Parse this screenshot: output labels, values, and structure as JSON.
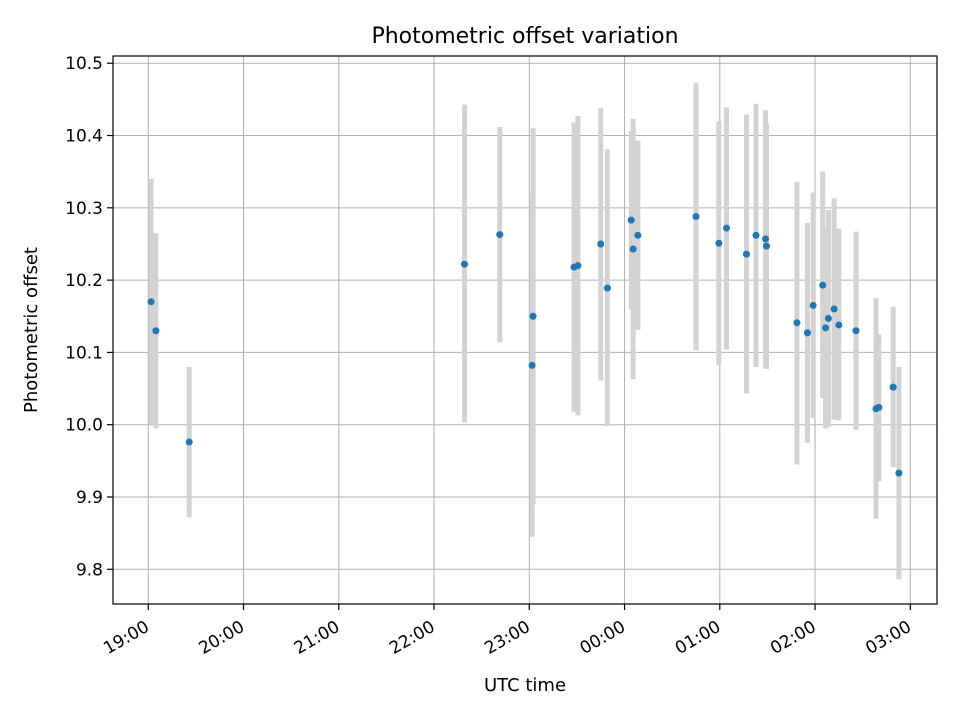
{
  "chart_data": {
    "type": "scatter",
    "title": "Photometric offset variation",
    "xlabel": "UTC time",
    "ylabel": "Photometric offset",
    "x_tick_labels": [
      "19:00",
      "20:00",
      "21:00",
      "22:00",
      "23:00",
      "00:00",
      "01:00",
      "02:00",
      "03:00"
    ],
    "y_tick_labels": [
      "9.8",
      "9.9",
      "10.0",
      "10.1",
      "10.2",
      "10.3",
      "10.4",
      "10.5"
    ],
    "x_ticks_hours": [
      19,
      20,
      21,
      22,
      23,
      24,
      25,
      26,
      27
    ],
    "y_ticks": [
      9.8,
      9.9,
      10.0,
      10.1,
      10.2,
      10.3,
      10.4,
      10.5
    ],
    "xlim_hours": [
      18.63,
      27.28
    ],
    "ylim": [
      9.752,
      10.51
    ],
    "grid": true,
    "marker_color": "#1f77b4",
    "errorbar_color": "#d3d3d3",
    "points": [
      {
        "t": 19.03,
        "y": 10.17,
        "lo": 10.0,
        "hi": 10.34
      },
      {
        "t": 19.08,
        "y": 10.13,
        "lo": 9.995,
        "hi": 10.265
      },
      {
        "t": 19.43,
        "y": 9.976,
        "lo": 9.872,
        "hi": 10.08
      },
      {
        "t": 22.32,
        "y": 10.222,
        "lo": 10.003,
        "hi": 10.443
      },
      {
        "t": 22.69,
        "y": 10.263,
        "lo": 10.114,
        "hi": 10.412
      },
      {
        "t": 23.04,
        "y": 10.15,
        "lo": 9.89,
        "hi": 10.41
      },
      {
        "t": 23.03,
        "y": 10.082,
        "lo": 9.845,
        "hi": 10.32
      },
      {
        "t": 23.47,
        "y": 10.218,
        "lo": 10.018,
        "hi": 10.418
      },
      {
        "t": 23.51,
        "y": 10.22,
        "lo": 10.013,
        "hi": 10.427
      },
      {
        "t": 23.75,
        "y": 10.25,
        "lo": 10.061,
        "hi": 10.438
      },
      {
        "t": 23.82,
        "y": 10.189,
        "lo": 9.998,
        "hi": 10.381
      },
      {
        "t": 24.07,
        "y": 10.283,
        "lo": 10.16,
        "hi": 10.406
      },
      {
        "t": 24.09,
        "y": 10.243,
        "lo": 10.063,
        "hi": 10.423
      },
      {
        "t": 24.14,
        "y": 10.262,
        "lo": 10.131,
        "hi": 10.393
      },
      {
        "t": 24.75,
        "y": 10.288,
        "lo": 10.103,
        "hi": 10.473
      },
      {
        "t": 24.99,
        "y": 10.251,
        "lo": 10.082,
        "hi": 10.42
      },
      {
        "t": 25.07,
        "y": 10.272,
        "lo": 10.104,
        "hi": 10.439
      },
      {
        "t": 25.28,
        "y": 10.236,
        "lo": 10.043,
        "hi": 10.429
      },
      {
        "t": 25.38,
        "y": 10.262,
        "lo": 10.08,
        "hi": 10.444
      },
      {
        "t": 25.48,
        "y": 10.257,
        "lo": 10.079,
        "hi": 10.435
      },
      {
        "t": 25.49,
        "y": 10.247,
        "lo": 10.077,
        "hi": 10.417
      },
      {
        "t": 25.81,
        "y": 10.141,
        "lo": 9.945,
        "hi": 10.336
      },
      {
        "t": 25.92,
        "y": 10.127,
        "lo": 9.975,
        "hi": 10.279
      },
      {
        "t": 25.98,
        "y": 10.165,
        "lo": 10.009,
        "hi": 10.321
      },
      {
        "t": 26.08,
        "y": 10.193,
        "lo": 10.037,
        "hi": 10.35
      },
      {
        "t": 26.11,
        "y": 10.134,
        "lo": 9.995,
        "hi": 10.273
      },
      {
        "t": 26.14,
        "y": 10.147,
        "lo": 9.997,
        "hi": 10.297
      },
      {
        "t": 26.2,
        "y": 10.16,
        "lo": 10.007,
        "hi": 10.313
      },
      {
        "t": 26.25,
        "y": 10.138,
        "lo": 10.006,
        "hi": 10.271
      },
      {
        "t": 26.43,
        "y": 10.13,
        "lo": 9.993,
        "hi": 10.267
      },
      {
        "t": 26.64,
        "y": 10.022,
        "lo": 9.87,
        "hi": 10.175
      },
      {
        "t": 26.67,
        "y": 10.024,
        "lo": 9.922,
        "hi": 10.125
      },
      {
        "t": 26.82,
        "y": 10.052,
        "lo": 9.941,
        "hi": 10.163
      },
      {
        "t": 26.88,
        "y": 9.933,
        "lo": 9.786,
        "hi": 10.08
      }
    ]
  }
}
